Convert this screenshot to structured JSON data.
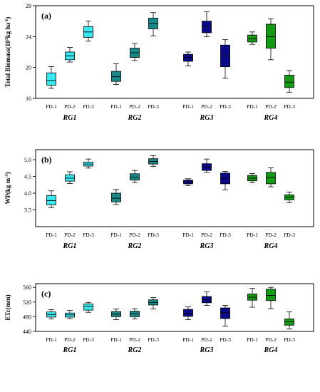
{
  "colors": {
    "PD-1": "#38e8ee",
    "RG1": "#38e8ee",
    "RG2": "#188888",
    "RG3": "#0a0a88",
    "RG4": "#149a14"
  },
  "chart_data": [
    {
      "type": "box",
      "panel_label": "(a)",
      "ylabel": "Total Biomass(10^3 kg ha^-1)",
      "ylabel_parts": {
        "pre": "Total Biomass(10",
        "sup1": "3",
        "mid": "kg ha",
        "sup2": "-1",
        "post": ")"
      },
      "ylim": [
        16,
        28
      ],
      "yticks": [
        16,
        20,
        24,
        28
      ],
      "ytick_labels": [
        "16",
        "20",
        "24",
        "28"
      ],
      "groups": [
        "RG1",
        "RG2",
        "RG3",
        "RG4"
      ],
      "categories": [
        "PD-1",
        "PD-2",
        "PD-3"
      ],
      "series": [
        {
          "group": "RG1",
          "boxes": [
            {
              "category": "PD-1",
              "min": 17.3,
              "q1": 17.7,
              "median": 18.3,
              "q3": 19.3,
              "max": 20.1
            },
            {
              "category": "PD-2",
              "min": 20.7,
              "q1": 21.0,
              "median": 21.5,
              "q3": 22.0,
              "max": 22.6
            },
            {
              "category": "PD-3",
              "min": 23.4,
              "q1": 23.9,
              "median": 24.6,
              "q3": 25.3,
              "max": 26.0
            }
          ]
        },
        {
          "group": "RG2",
          "boxes": [
            {
              "category": "PD-1",
              "min": 17.8,
              "q1": 18.2,
              "median": 18.8,
              "q3": 19.5,
              "max": 20.5
            },
            {
              "category": "PD-2",
              "min": 20.9,
              "q1": 21.3,
              "median": 21.9,
              "q3": 22.5,
              "max": 23.1
            },
            {
              "category": "PD-3",
              "min": 24.1,
              "q1": 25.0,
              "median": 25.7,
              "q3": 26.4,
              "max": 27.1
            }
          ]
        },
        {
          "group": "RG3",
          "boxes": [
            {
              "category": "PD-1",
              "min": 20.2,
              "q1": 20.8,
              "median": 21.3,
              "q3": 21.7,
              "max": 22.0
            },
            {
              "category": "PD-2",
              "min": 24.0,
              "q1": 24.5,
              "median": 25.3,
              "q3": 26.0,
              "max": 27.2
            },
            {
              "category": "PD-3",
              "min": 18.6,
              "q1": 20.1,
              "median": 21.5,
              "q3": 22.9,
              "max": 23.6
            }
          ]
        },
        {
          "group": "RG4",
          "boxes": [
            {
              "category": "PD-1",
              "min": 23.0,
              "q1": 23.3,
              "median": 23.7,
              "q3": 24.2,
              "max": 24.6
            },
            {
              "category": "PD-2",
              "min": 21.0,
              "q1": 22.5,
              "median": 24.0,
              "q3": 25.6,
              "max": 26.3
            },
            {
              "category": "PD-3",
              "min": 16.8,
              "q1": 17.4,
              "median": 18.1,
              "q3": 19.0,
              "max": 19.6
            }
          ]
        }
      ]
    },
    {
      "type": "box",
      "panel_label": "(b)",
      "ylabel": "WP(kg m^-3)",
      "ylabel_parts": {
        "pre": "WP(kg m",
        "sup1": "-3",
        "mid": "",
        "sup2": "",
        "post": ")"
      },
      "ylim": [
        3.0,
        5.3
      ],
      "yticks": [
        3.5,
        4.0,
        4.5,
        5.0
      ],
      "ytick_labels": [
        "3.5",
        "4.0",
        "4.5",
        "5.0"
      ],
      "groups": [
        "RG1",
        "RG2",
        "RG3",
        "RG4"
      ],
      "categories": [
        "PD-1",
        "PD-2",
        "PD-3"
      ],
      "series": [
        {
          "group": "RG1",
          "boxes": [
            {
              "category": "PD-1",
              "min": 3.57,
              "q1": 3.65,
              "median": 3.78,
              "q3": 3.93,
              "max": 4.07
            },
            {
              "category": "PD-2",
              "min": 4.29,
              "q1": 4.36,
              "median": 4.45,
              "q3": 4.55,
              "max": 4.64
            },
            {
              "category": "PD-3",
              "min": 4.75,
              "q1": 4.81,
              "median": 4.87,
              "q3": 4.93,
              "max": 5.02
            }
          ]
        },
        {
          "group": "RG2",
          "boxes": [
            {
              "category": "PD-1",
              "min": 3.66,
              "q1": 3.74,
              "median": 3.85,
              "q3": 4.0,
              "max": 4.11
            },
            {
              "category": "PD-2",
              "min": 4.32,
              "q1": 4.39,
              "median": 4.48,
              "q3": 4.58,
              "max": 4.68
            },
            {
              "category": "PD-3",
              "min": 4.8,
              "q1": 4.87,
              "median": 4.95,
              "q3": 5.03,
              "max": 5.12
            }
          ]
        },
        {
          "group": "RG3",
          "boxes": [
            {
              "category": "PD-1",
              "min": 4.23,
              "q1": 4.28,
              "median": 4.34,
              "q3": 4.39,
              "max": 4.43
            },
            {
              "category": "PD-2",
              "min": 4.62,
              "q1": 4.68,
              "median": 4.77,
              "q3": 4.88,
              "max": 5.02
            },
            {
              "category": "PD-3",
              "min": 4.1,
              "q1": 4.28,
              "median": 4.45,
              "q3": 4.6,
              "max": 4.65
            }
          ]
        },
        {
          "group": "RG4",
          "boxes": [
            {
              "category": "PD-1",
              "min": 4.31,
              "q1": 4.37,
              "median": 4.45,
              "q3": 4.53,
              "max": 4.59
            },
            {
              "category": "PD-2",
              "min": 4.19,
              "q1": 4.28,
              "median": 4.47,
              "q3": 4.62,
              "max": 4.76
            },
            {
              "category": "PD-3",
              "min": 3.72,
              "q1": 3.8,
              "median": 3.88,
              "q3": 3.95,
              "max": 4.03
            }
          ]
        }
      ]
    },
    {
      "type": "box",
      "panel_label": "(c)",
      "ylabel": "ETc(mm)",
      "ylabel_parts": {
        "pre": "ETc(mm)",
        "sup1": "",
        "mid": "",
        "sup2": "",
        "post": ""
      },
      "ylim": [
        440,
        570
      ],
      "yticks": [
        440,
        480,
        520,
        560
      ],
      "ytick_labels": [
        "440",
        "480",
        "520",
        "560"
      ],
      "groups": [
        "RG1",
        "RG2",
        "RG3",
        "RG4"
      ],
      "categories": [
        "PD-1",
        "PD-2",
        "PD-3"
      ],
      "series": [
        {
          "group": "RG1",
          "boxes": [
            {
              "category": "PD-1",
              "min": 474,
              "q1": 479,
              "median": 486,
              "q3": 493,
              "max": 499
            },
            {
              "category": "PD-2",
              "min": 475,
              "q1": 479,
              "median": 485,
              "q3": 490,
              "max": 497
            },
            {
              "category": "PD-3",
              "min": 492,
              "q1": 498,
              "median": 508,
              "q3": 515,
              "max": 519
            }
          ]
        },
        {
          "group": "RG2",
          "boxes": [
            {
              "category": "PD-1",
              "min": 472,
              "q1": 480,
              "median": 487,
              "q3": 494,
              "max": 501
            },
            {
              "category": "PD-2",
              "min": 474,
              "q1": 480,
              "median": 488,
              "q3": 495,
              "max": 502
            },
            {
              "category": "PD-3",
              "min": 501,
              "q1": 512,
              "median": 519,
              "q3": 526,
              "max": 532
            }
          ]
        },
        {
          "group": "RG3",
          "boxes": [
            {
              "category": "PD-1",
              "min": 472,
              "q1": 481,
              "median": 489,
              "q3": 500,
              "max": 507
            },
            {
              "category": "PD-2",
              "min": 511,
              "q1": 518,
              "median": 526,
              "q3": 535,
              "max": 548
            },
            {
              "category": "PD-3",
              "min": 454,
              "q1": 475,
              "median": 491,
              "q3": 504,
              "max": 511
            }
          ]
        },
        {
          "group": "RG4",
          "boxes": [
            {
              "category": "PD-1",
              "min": 506,
              "q1": 525,
              "median": 533,
              "q3": 542,
              "max": 557
            },
            {
              "category": "PD-2",
              "min": 502,
              "q1": 524,
              "median": 538,
              "q3": 555,
              "max": 560
            },
            {
              "category": "PD-3",
              "min": 447,
              "q1": 457,
              "median": 466,
              "q3": 474,
              "max": 493
            }
          ]
        }
      ]
    }
  ]
}
